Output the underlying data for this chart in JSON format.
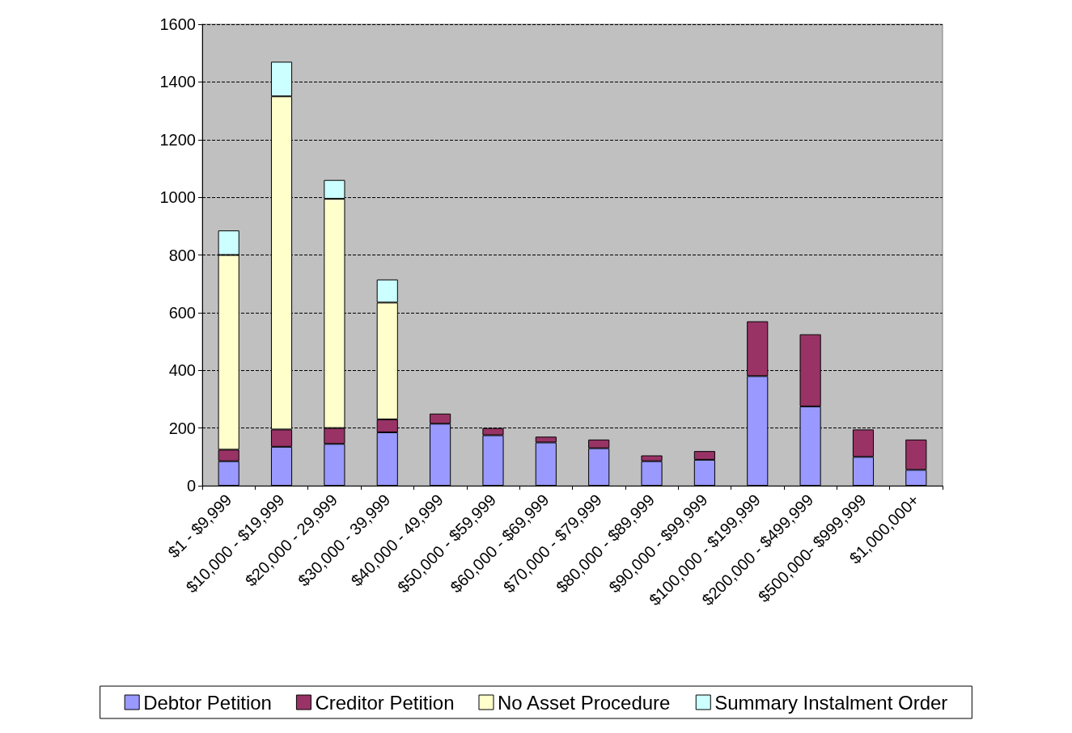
{
  "chart_data": {
    "type": "bar",
    "stacked": true,
    "categories": [
      "$1 - $9,999",
      "$10,000 - $19,999",
      "$20,000 - 29,999",
      "$30,000 - 39,999",
      "$40,000 - 49,999",
      "$50,000 - $59,999",
      "$60,000 - $69,999",
      "$70,000 - $79,999",
      "$80,000 - $89,999",
      "$90,000 - $99,999",
      "$100,000 - $199,999",
      "$200,000 - $499,999",
      "$500,000- $999,999",
      "$1,000,000+"
    ],
    "series": [
      {
        "name": "Debtor Petition",
        "color": "#9999ff",
        "values": [
          85,
          135,
          145,
          185,
          215,
          175,
          150,
          130,
          85,
          90,
          380,
          275,
          100,
          55
        ]
      },
      {
        "name": "Creditor Petition",
        "color": "#993366",
        "values": [
          40,
          60,
          55,
          45,
          35,
          25,
          20,
          30,
          20,
          30,
          190,
          250,
          95,
          105
        ]
      },
      {
        "name": "No Asset Procedure",
        "color": "#ffffcc",
        "values": [
          675,
          1155,
          795,
          405,
          null,
          null,
          null,
          null,
          null,
          null,
          null,
          null,
          null,
          null
        ]
      },
      {
        "name": "Summary Instalment Order",
        "color": "#ccffff",
        "values": [
          85,
          120,
          65,
          80,
          null,
          null,
          null,
          null,
          null,
          null,
          null,
          null,
          null,
          null
        ]
      }
    ],
    "ylim": [
      0,
      1600
    ],
    "yticks": [
      0,
      200,
      400,
      600,
      800,
      1000,
      1200,
      1400,
      1600
    ],
    "grid": "y",
    "legend": "bottom"
  }
}
